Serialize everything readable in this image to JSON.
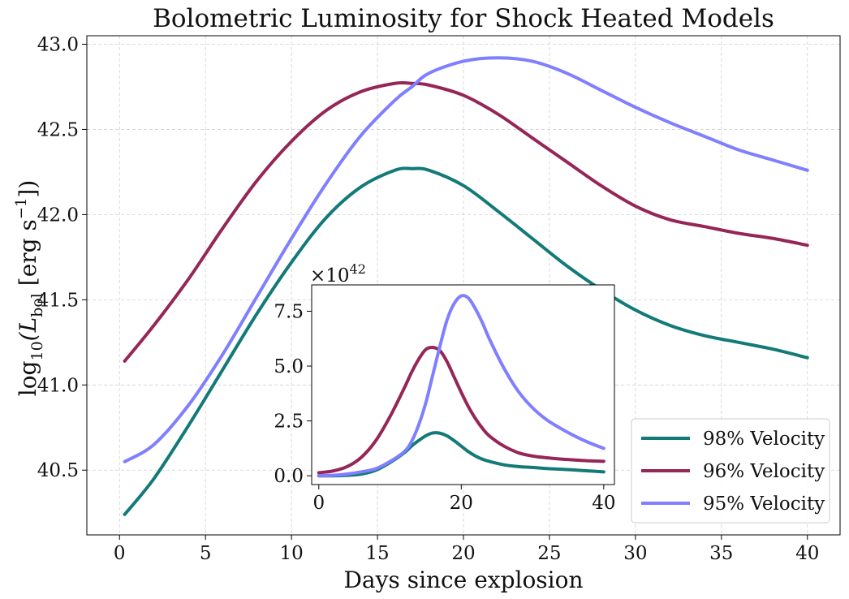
{
  "chart_data": [
    {
      "type": "line",
      "title": "Bolometric Luminosity for Shock Heated Models",
      "xlabel": "Days since explosion",
      "ylabel_main": "log",
      "ylabel_sub": "10",
      "ylabel_rest": "(L",
      "ylabel_bol": "bol",
      "ylabel_units": " [erg s",
      "ylabel_exp": "−1",
      "ylabel_close": "])",
      "xlim": [
        -1.9,
        41.9
      ],
      "ylim": [
        40.12,
        43.05
      ],
      "xticks": [
        0,
        5,
        10,
        15,
        20,
        25,
        30,
        35,
        40
      ],
      "xtick_labels": [
        "0",
        "5",
        "10",
        "15",
        "20",
        "25",
        "30",
        "35",
        "40"
      ],
      "yticks": [
        40.5,
        41.0,
        41.5,
        42.0,
        42.5,
        43.0
      ],
      "ytick_labels": [
        "40.5",
        "41.0",
        "41.5",
        "42.0",
        "42.5",
        "43.0"
      ],
      "grid": true,
      "legend_position": "bottom-right",
      "x": [
        0.3,
        2,
        4,
        6,
        8,
        10,
        12,
        14,
        16,
        17,
        18,
        20,
        22,
        24,
        26,
        28,
        30,
        32,
        34,
        36,
        38,
        40
      ],
      "series": [
        {
          "name": "98% Velocity",
          "color": "#137a78",
          "values": [
            40.24,
            40.45,
            40.76,
            41.09,
            41.42,
            41.72,
            41.98,
            42.16,
            42.26,
            42.27,
            42.26,
            42.17,
            42.02,
            41.86,
            41.7,
            41.56,
            41.44,
            41.35,
            41.29,
            41.25,
            41.21,
            41.16
          ]
        },
        {
          "name": "96% Velocity",
          "color": "#952658",
          "values": [
            41.14,
            41.35,
            41.62,
            41.92,
            42.2,
            42.43,
            42.61,
            42.72,
            42.77,
            42.77,
            42.76,
            42.7,
            42.59,
            42.45,
            42.31,
            42.17,
            42.05,
            41.97,
            41.93,
            41.89,
            41.86,
            41.82
          ]
        },
        {
          "name": "95% Velocity",
          "color": "#7f7fff",
          "values": [
            40.55,
            40.65,
            40.88,
            41.18,
            41.52,
            41.86,
            42.18,
            42.46,
            42.67,
            42.75,
            42.83,
            42.9,
            42.92,
            42.9,
            42.83,
            42.73,
            42.63,
            42.54,
            42.46,
            42.38,
            42.32,
            42.26
          ]
        }
      ]
    },
    {
      "type": "line",
      "title": "",
      "offset_label": "×10",
      "offset_exp": "42",
      "xlim": [
        -1,
        41.5
      ],
      "ylim": [
        -0.4,
        8.7
      ],
      "xticks": [
        0,
        20,
        40
      ],
      "xtick_labels": [
        "0",
        "20",
        "40"
      ],
      "yticks": [
        0.0,
        2.5,
        5.0,
        7.5
      ],
      "ytick_labels": [
        "0.0",
        "2.5",
        "5.0",
        "7.5"
      ],
      "grid": false,
      "x": [
        0,
        2,
        4,
        6,
        8,
        10,
        12,
        13,
        14,
        15,
        16,
        17,
        18,
        19,
        20,
        21,
        22,
        23,
        24,
        26,
        28,
        30,
        32,
        34,
        36,
        38,
        40
      ],
      "series": [
        {
          "name": "98% Velocity",
          "color": "#137a78",
          "values": [
            0.0,
            0.0,
            0.02,
            0.08,
            0.25,
            0.6,
            1.05,
            1.35,
            1.6,
            1.82,
            1.95,
            1.94,
            1.82,
            1.6,
            1.35,
            1.1,
            0.9,
            0.75,
            0.65,
            0.5,
            0.42,
            0.38,
            0.33,
            0.3,
            0.26,
            0.22,
            0.18
          ]
        },
        {
          "name": "96% Velocity",
          "color": "#952658",
          "values": [
            0.14,
            0.22,
            0.42,
            0.85,
            1.6,
            2.7,
            4.0,
            4.7,
            5.3,
            5.75,
            5.85,
            5.7,
            5.2,
            4.5,
            3.8,
            3.15,
            2.6,
            2.15,
            1.8,
            1.35,
            1.05,
            0.9,
            0.82,
            0.76,
            0.72,
            0.68,
            0.66
          ]
        },
        {
          "name": "95% Velocity",
          "color": "#7f7fff",
          "values": [
            0.0,
            0.02,
            0.08,
            0.18,
            0.32,
            0.65,
            1.1,
            1.55,
            2.3,
            3.3,
            4.6,
            5.9,
            7.1,
            7.85,
            8.2,
            8.1,
            7.6,
            6.95,
            6.2,
            4.9,
            3.85,
            3.1,
            2.55,
            2.15,
            1.8,
            1.5,
            1.25
          ]
        }
      ]
    }
  ]
}
